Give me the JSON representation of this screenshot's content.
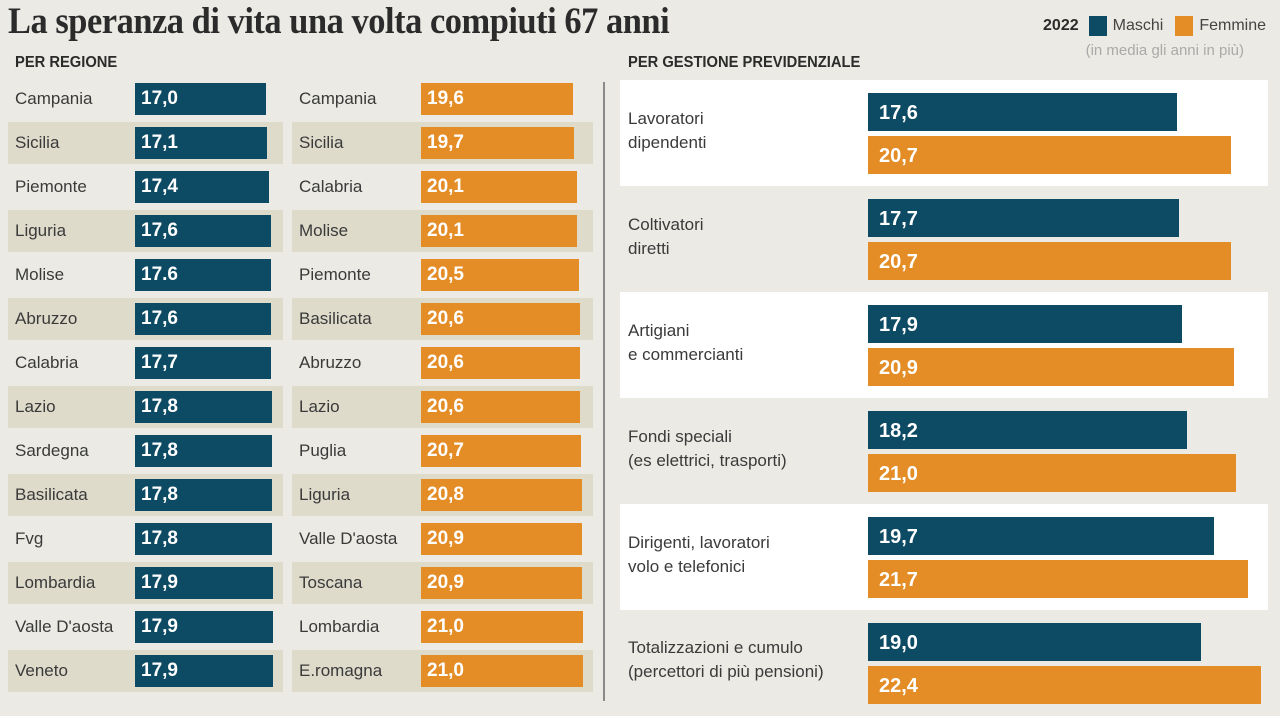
{
  "title": "La speranza di vita una volta compiuti 67 anni",
  "legend": {
    "year": "2022",
    "male_label": "Maschi",
    "female_label": "Femmine",
    "note": "(in media gli anni in più)"
  },
  "colors": {
    "male": "#0d4a63",
    "female": "#e48d26",
    "stripe": "#dedbcb",
    "background": "#ebeae4"
  },
  "chart_data": [
    {
      "type": "bar",
      "title": "PER REGIONE",
      "series": [
        {
          "name": "Maschi",
          "categories": [
            "Campania",
            "Sicilia",
            "Piemonte",
            "Liguria",
            "Molise",
            "Abruzzo",
            "Calabria",
            "Lazio",
            "Sardegna",
            "Basilicata",
            "Fvg",
            "Lombardia",
            "Valle D'aosta",
            "Veneto"
          ],
          "labels": [
            "17,0",
            "17,1",
            "17,4",
            "17,6",
            "17.6",
            "17,6",
            "17,7",
            "17,8",
            "17,8",
            "17,8",
            "17,8",
            "17,9",
            "17,9",
            "17,9"
          ],
          "values": [
            17.0,
            17.1,
            17.4,
            17.6,
            17.6,
            17.6,
            17.7,
            17.8,
            17.8,
            17.8,
            17.8,
            17.9,
            17.9,
            17.9
          ]
        },
        {
          "name": "Femmine",
          "categories": [
            "Campania",
            "Sicilia",
            "Calabria",
            "Molise",
            "Piemonte",
            "Basilicata",
            "Abruzzo",
            "Lazio",
            "Puglia",
            "Liguria",
            "Valle D'aosta",
            "Toscana",
            "Lombardia",
            "E.romagna"
          ],
          "labels": [
            "19,6",
            "19,7",
            "20,1",
            "20,1",
            "20,5",
            "20,6",
            "20,6",
            "20,6",
            "20,7",
            "20,8",
            "20,9",
            "20,9",
            "21,0",
            "21,0"
          ],
          "values": [
            19.6,
            19.7,
            20.1,
            20.1,
            20.5,
            20.6,
            20.6,
            20.6,
            20.7,
            20.8,
            20.9,
            20.9,
            21.0,
            21.0
          ]
        }
      ]
    },
    {
      "type": "bar",
      "title": "PER GESTIONE PREVIDENZIALE",
      "categories": [
        [
          "Lavoratori",
          "dipendenti"
        ],
        [
          "Coltivatori",
          "diretti"
        ],
        [
          "Artigiani",
          "e commercianti"
        ],
        [
          "Fondi speciali",
          "(es elettrici, trasporti)"
        ],
        [
          "Dirigenti, lavoratori",
          "volo e telefonici"
        ],
        [
          "Totalizzazioni e cumulo",
          "(percettori di più pensioni)"
        ]
      ],
      "series": [
        {
          "name": "Maschi",
          "labels": [
            "17,6",
            "17,7",
            "17,9",
            "18,2",
            "19,7",
            "19,0"
          ],
          "values": [
            17.6,
            17.7,
            17.9,
            18.2,
            19.7,
            19.0
          ]
        },
        {
          "name": "Femmine",
          "labels": [
            "20,7",
            "20,7",
            "20,9",
            "21,0",
            "21,7",
            "22,4"
          ],
          "values": [
            20.7,
            20.7,
            20.9,
            21.0,
            21.7,
            22.4
          ]
        }
      ]
    }
  ]
}
